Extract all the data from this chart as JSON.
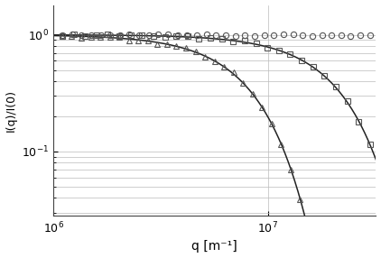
{
  "title": "",
  "xlabel": "q [m⁻¹]",
  "ylabel": "I(q)/I(0)",
  "xlim": [
    1000000.0,
    32000000.0
  ],
  "ylim": [
    0.028,
    1.8
  ],
  "background_color": "#ffffff",
  "grid_color": "#bbbbbb",
  "curve_color": "#222222",
  "marker_color": "#555555",
  "curve1_Rg": 8.5e-08,
  "curve2_Rg": 2.2e-07,
  "circles_Rg": 2.2e-09,
  "circles_q_min": 1100000.0,
  "circles_q_max": 30000000.0,
  "circles_n": 33,
  "squares_Rg": 8.5e-08,
  "squares_q_min": 1100000.0,
  "squares_q_max": 30000000.0,
  "squares_n": 28,
  "triangles_Rg": 2.2e-07,
  "triangles_q_min": 1100000.0,
  "triangles_q_max": 29000000.0,
  "triangles_n": 33,
  "marker_size": 4.5,
  "marker_edge_width": 0.8,
  "line_width": 1.1,
  "vline_x": 10000000.0
}
